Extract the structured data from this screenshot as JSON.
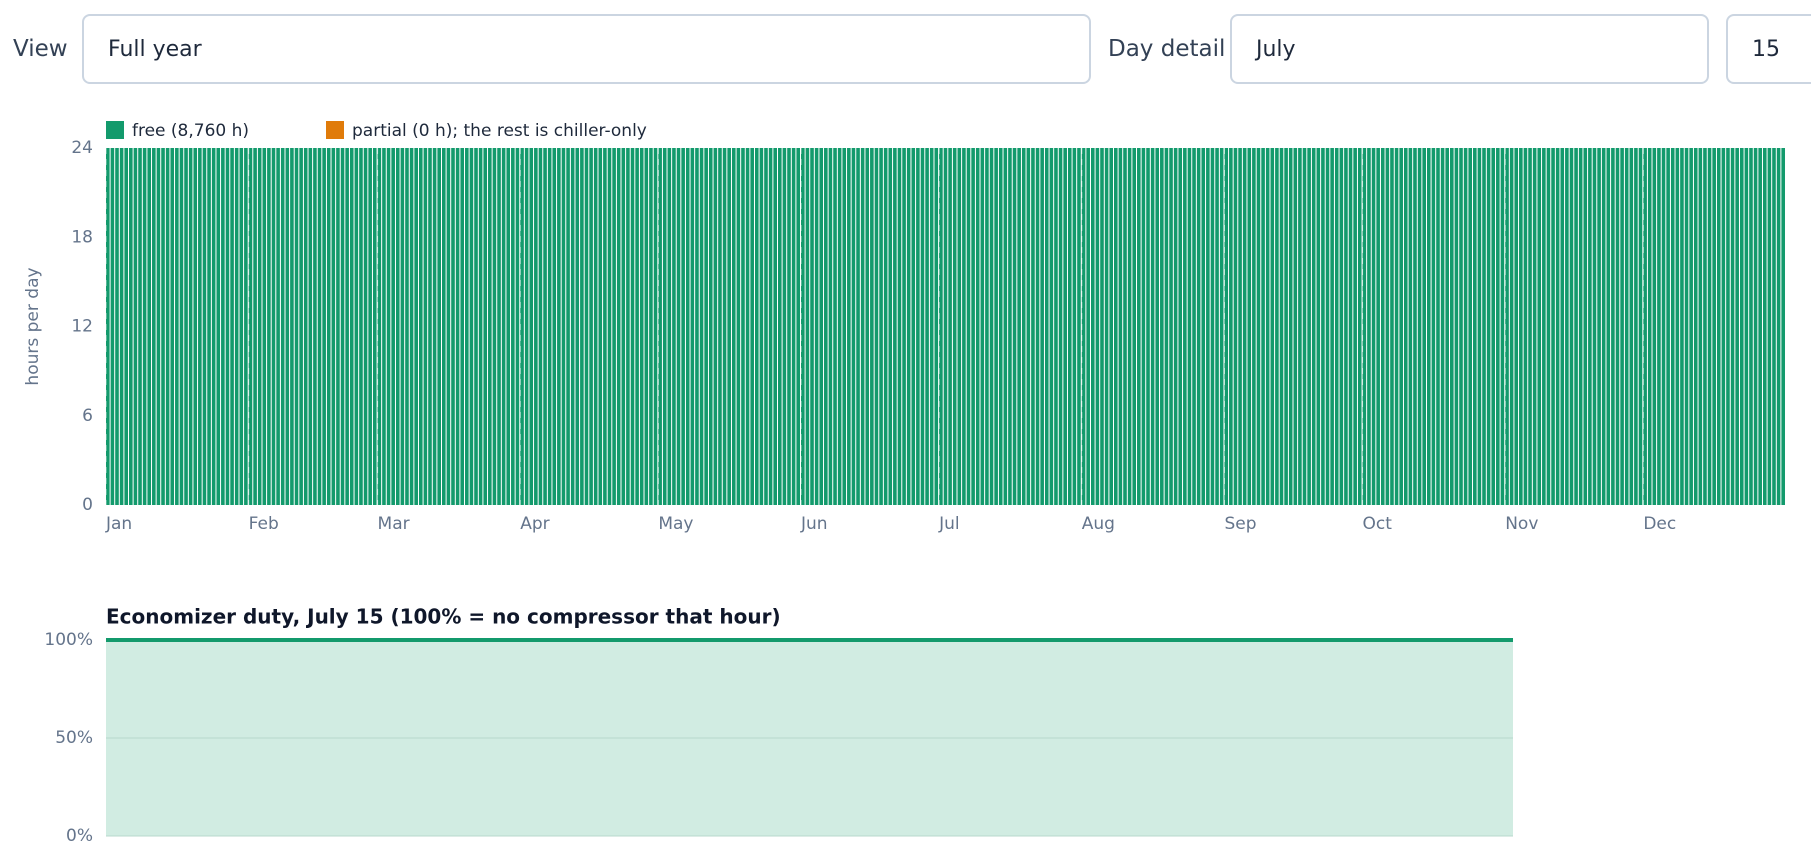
{
  "controls": {
    "view_label": "View",
    "view_value": "Full year",
    "day_label": "Day detail",
    "month_value": "July",
    "day_value": "15"
  },
  "chart_data": [
    {
      "type": "bar",
      "stacked": true,
      "ylabel": "hours per day",
      "ylim": [
        0,
        24
      ],
      "yticks": [
        0,
        6,
        12,
        18,
        24
      ],
      "xlim": [
        0,
        365
      ],
      "xticks": [
        {
          "value": 0,
          "label": "Jan"
        },
        {
          "value": 31,
          "label": "Feb"
        },
        {
          "value": 59,
          "label": "Mar"
        },
        {
          "value": 90,
          "label": "Apr"
        },
        {
          "value": 120,
          "label": "May"
        },
        {
          "value": 151,
          "label": "Jun"
        },
        {
          "value": 181,
          "label": "Jul"
        },
        {
          "value": 212,
          "label": "Aug"
        },
        {
          "value": 243,
          "label": "Sep"
        },
        {
          "value": 273,
          "label": "Oct"
        },
        {
          "value": 304,
          "label": "Nov"
        },
        {
          "value": 334,
          "label": "Dec"
        }
      ],
      "grid": true,
      "series": [
        {
          "name": "free (8,760 h)",
          "color": "#139a6c",
          "values": [
            24,
            24,
            24,
            24,
            24,
            24,
            24,
            24,
            24,
            24,
            24,
            24,
            24,
            24,
            24,
            24,
            24,
            24,
            24,
            24,
            24,
            24,
            24,
            24,
            24,
            24,
            24,
            24,
            24,
            24,
            24,
            24,
            24,
            24,
            24,
            24,
            24,
            24,
            24,
            24,
            24,
            24,
            24,
            24,
            24,
            24,
            24,
            24,
            24,
            24,
            24,
            24,
            24,
            24,
            24,
            24,
            24,
            24,
            24,
            24,
            24,
            24,
            24,
            24,
            24,
            24,
            24,
            24,
            24,
            24,
            24,
            24,
            24,
            24,
            24,
            24,
            24,
            24,
            24,
            24,
            24,
            24,
            24,
            24,
            24,
            24,
            24,
            24,
            24,
            24,
            24,
            24,
            24,
            24,
            24,
            24,
            24,
            24,
            24,
            24,
            24,
            24,
            24,
            24,
            24,
            24,
            24,
            24,
            24,
            24,
            24,
            24,
            24,
            24,
            24,
            24,
            24,
            24,
            24,
            24,
            24,
            24,
            24,
            24,
            24,
            24,
            24,
            24,
            24,
            24,
            24,
            24,
            24,
            24,
            24,
            24,
            24,
            24,
            24,
            24,
            24,
            24,
            24,
            24,
            24,
            24,
            24,
            24,
            24,
            24,
            24,
            24,
            24,
            24,
            24,
            24,
            24,
            24,
            24,
            24,
            24,
            24,
            24,
            24,
            24,
            24,
            24,
            24,
            24,
            24,
            24,
            24,
            24,
            24,
            24,
            24,
            24,
            24,
            24,
            24,
            24,
            24,
            24,
            24,
            24,
            24,
            24,
            24,
            24,
            24,
            24,
            24,
            24,
            24,
            24,
            24,
            24,
            24,
            24,
            24,
            24,
            24,
            24,
            24,
            24,
            24,
            24,
            24,
            24,
            24,
            24,
            24,
            24,
            24,
            24,
            24,
            24,
            24,
            24,
            24,
            24,
            24,
            24,
            24,
            24,
            24,
            24,
            24,
            24,
            24,
            24,
            24,
            24,
            24,
            24,
            24,
            24,
            24,
            24,
            24,
            24,
            24,
            24,
            24,
            24,
            24,
            24,
            24,
            24,
            24,
            24,
            24,
            24,
            24,
            24,
            24,
            24,
            24,
            24,
            24,
            24,
            24,
            24,
            24,
            24,
            24,
            24,
            24,
            24,
            24,
            24,
            24,
            24,
            24,
            24,
            24,
            24,
            24,
            24,
            24,
            24,
            24,
            24,
            24,
            24,
            24,
            24,
            24,
            24,
            24,
            24,
            24,
            24,
            24,
            24,
            24,
            24,
            24,
            24,
            24,
            24,
            24,
            24,
            24,
            24,
            24,
            24,
            24,
            24,
            24,
            24,
            24,
            24,
            24,
            24,
            24,
            24,
            24,
            24,
            24,
            24,
            24,
            24,
            24,
            24,
            24,
            24,
            24,
            24,
            24,
            24,
            24,
            24,
            24,
            24,
            24,
            24,
            24,
            24,
            24,
            24,
            24,
            24,
            24,
            24,
            24,
            24,
            24,
            24,
            24,
            24,
            24,
            24,
            24,
            24,
            24,
            24,
            24,
            24,
            24,
            24,
            24,
            24,
            24,
            24
          ]
        },
        {
          "name": "partial (0 h); the rest is chiller-only",
          "color": "#e07b0a",
          "values": [
            0,
            0,
            0,
            0,
            0,
            0,
            0,
            0,
            0,
            0,
            0,
            0,
            0,
            0,
            0,
            0,
            0,
            0,
            0,
            0,
            0,
            0,
            0,
            0,
            0,
            0,
            0,
            0,
            0,
            0,
            0,
            0,
            0,
            0,
            0,
            0,
            0,
            0,
            0,
            0,
            0,
            0,
            0,
            0,
            0,
            0,
            0,
            0,
            0,
            0,
            0,
            0,
            0,
            0,
            0,
            0,
            0,
            0,
            0,
            0,
            0,
            0,
            0,
            0,
            0,
            0,
            0,
            0,
            0,
            0,
            0,
            0,
            0,
            0,
            0,
            0,
            0,
            0,
            0,
            0,
            0,
            0,
            0,
            0,
            0,
            0,
            0,
            0,
            0,
            0,
            0,
            0,
            0,
            0,
            0,
            0,
            0,
            0,
            0,
            0,
            0,
            0,
            0,
            0,
            0,
            0,
            0,
            0,
            0,
            0,
            0,
            0,
            0,
            0,
            0,
            0,
            0,
            0,
            0,
            0,
            0,
            0,
            0,
            0,
            0,
            0,
            0,
            0,
            0,
            0,
            0,
            0,
            0,
            0,
            0,
            0,
            0,
            0,
            0,
            0,
            0,
            0,
            0,
            0,
            0,
            0,
            0,
            0,
            0,
            0,
            0,
            0,
            0,
            0,
            0,
            0,
            0,
            0,
            0,
            0,
            0,
            0,
            0,
            0,
            0,
            0,
            0,
            0,
            0,
            0,
            0,
            0,
            0,
            0,
            0,
            0,
            0,
            0,
            0,
            0,
            0,
            0,
            0,
            0,
            0,
            0,
            0,
            0,
            0,
            0,
            0,
            0,
            0,
            0,
            0,
            0,
            0,
            0,
            0,
            0,
            0,
            0,
            0,
            0,
            0,
            0,
            0,
            0,
            0,
            0,
            0,
            0,
            0,
            0,
            0,
            0,
            0,
            0,
            0,
            0,
            0,
            0,
            0,
            0,
            0,
            0,
            0,
            0,
            0,
            0,
            0,
            0,
            0,
            0,
            0,
            0,
            0,
            0,
            0,
            0,
            0,
            0,
            0,
            0,
            0,
            0,
            0,
            0,
            0,
            0,
            0,
            0,
            0,
            0,
            0,
            0,
            0,
            0,
            0,
            0,
            0,
            0,
            0,
            0,
            0,
            0,
            0,
            0,
            0,
            0,
            0,
            0,
            0,
            0,
            0,
            0,
            0,
            0,
            0,
            0,
            0,
            0,
            0,
            0,
            0,
            0,
            0,
            0,
            0,
            0,
            0,
            0,
            0,
            0,
            0,
            0,
            0,
            0,
            0,
            0,
            0,
            0,
            0,
            0,
            0,
            0,
            0,
            0,
            0,
            0,
            0,
            0,
            0,
            0,
            0,
            0,
            0,
            0,
            0,
            0,
            0,
            0,
            0,
            0,
            0,
            0,
            0,
            0,
            0,
            0,
            0,
            0,
            0,
            0,
            0,
            0,
            0,
            0,
            0,
            0,
            0,
            0,
            0,
            0,
            0,
            0,
            0,
            0,
            0,
            0,
            0,
            0,
            0,
            0,
            0,
            0,
            0,
            0,
            0,
            0,
            0,
            0,
            0,
            0,
            0
          ]
        }
      ]
    },
    {
      "type": "area",
      "title": "Economizer duty, July 15 (100% = no compressor that hour)",
      "ylim": [
        0,
        100
      ],
      "yticks": [
        {
          "value": 0,
          "label": "0%"
        },
        {
          "value": 50,
          "label": "50%"
        },
        {
          "value": 100,
          "label": "100%"
        }
      ],
      "grid": true,
      "color": "#139a6c",
      "fill": "#d1ece2",
      "values": [
        100,
        100,
        100,
        100,
        100,
        100,
        100,
        100,
        100,
        100,
        100,
        100,
        100,
        100,
        100,
        100,
        100,
        100,
        100,
        100,
        100,
        100,
        100,
        100
      ]
    }
  ]
}
